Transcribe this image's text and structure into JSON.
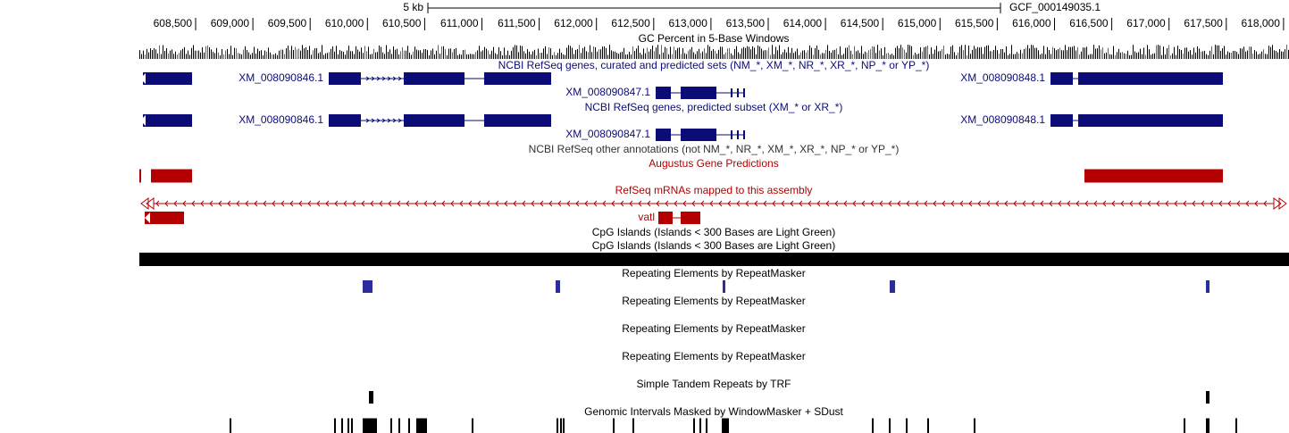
{
  "ruler": {
    "scale_label": "5 kb",
    "assembly": "GCF_000149035.1",
    "ticks": [
      "608,500",
      "609,000",
      "609,500",
      "610,000",
      "610,500",
      "611,000",
      "611,500",
      "612,000",
      "612,500",
      "613,000",
      "613,500",
      "614,000",
      "614,500",
      "615,000",
      "615,500",
      "616,000",
      "616,500",
      "617,000",
      "617,500",
      "618,000"
    ]
  },
  "tracks": [
    {
      "title": "GC Percent in 5-Base Windows"
    },
    {
      "title": "NCBI RefSeq genes, curated and predicted sets (NM_*, XM_*, NR_*, XR_*, NP_* or YP_*)",
      "genes": [
        "XM_008090846.1",
        "XM_008090847.1",
        "XM_008090848.1"
      ]
    },
    {
      "title": "NCBI RefSeq genes, predicted subset (XM_* or XR_*)",
      "genes": [
        "XM_008090846.1",
        "XM_008090847.1",
        "XM_008090848.1"
      ]
    },
    {
      "title": "NCBI RefSeq other annotations (not NM_*, NR_*, XM_*, XR_*, NP_* or YP_*)"
    },
    {
      "title": "Augustus Gene Predictions"
    },
    {
      "title": "RefSeq mRNAs mapped to this assembly",
      "genes": [
        "vatl"
      ]
    },
    {
      "title": "CpG Islands (Islands < 300 Bases are Light Green)"
    },
    {
      "title": "CpG Islands (Islands < 300 Bases are Light Green)"
    },
    {
      "title": "Repeating Elements by RepeatMasker"
    },
    {
      "title": "Repeating Elements by RepeatMasker"
    },
    {
      "title": "Repeating Elements by RepeatMasker"
    },
    {
      "title": "Repeating Elements by RepeatMasker"
    },
    {
      "title": "Simple Tandem Repeats by TRF"
    },
    {
      "title": "Genomic Intervals Masked by WindowMasker + SDust"
    }
  ]
}
